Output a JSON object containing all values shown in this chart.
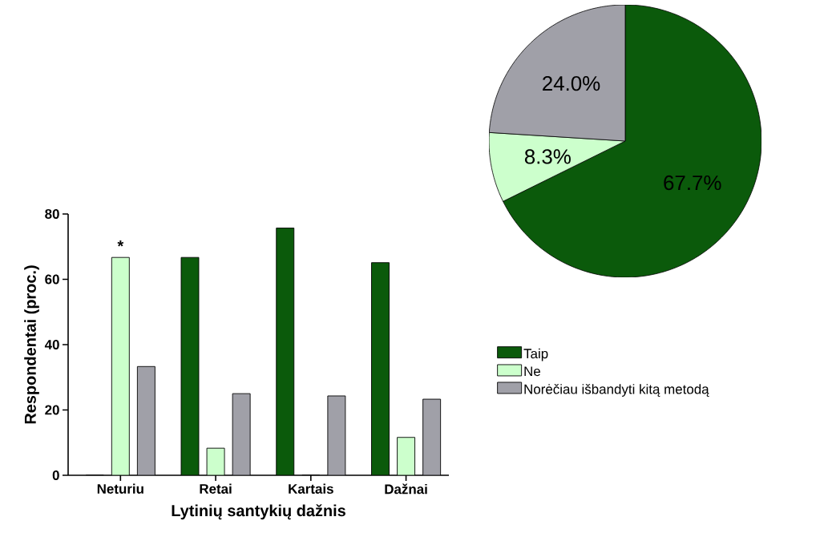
{
  "chart_data": [
    {
      "type": "bar",
      "categories": [
        "Neturiu",
        "Retai",
        "Kartais",
        "Dažnai"
      ],
      "series": [
        {
          "name": "Taip",
          "color": "#0b5a0b",
          "values": [
            0,
            66.7,
            75.7,
            65.1
          ]
        },
        {
          "name": "Ne",
          "color": "#ccffcc",
          "values": [
            66.7,
            8.3,
            0,
            11.6
          ]
        },
        {
          "name": "Norėčiau išbandyti kitą metodą",
          "color": "#a0a0a8",
          "values": [
            33.3,
            25,
            24.3,
            23.3
          ]
        }
      ],
      "xlabel": "Lytinių santykių dažnis",
      "ylabel": "Respondentai (proc.)",
      "ylim": [
        0,
        80
      ],
      "yticks": [
        0,
        20,
        40,
        60,
        80
      ],
      "grid": false,
      "legend": "right",
      "annotations": [
        {
          "text": "*",
          "x": "Neturiu",
          "y": 66.7
        }
      ]
    },
    {
      "type": "pie",
      "categories": [
        null,
        null,
        null
      ],
      "values": [
        67.7,
        8.3,
        24.0
      ],
      "colors": [
        "#0b5a0b",
        "#ccffcc",
        "#a0a0a8"
      ],
      "value_labels": [
        "67.7%",
        "8.3%",
        "24.0%"
      ]
    }
  ]
}
